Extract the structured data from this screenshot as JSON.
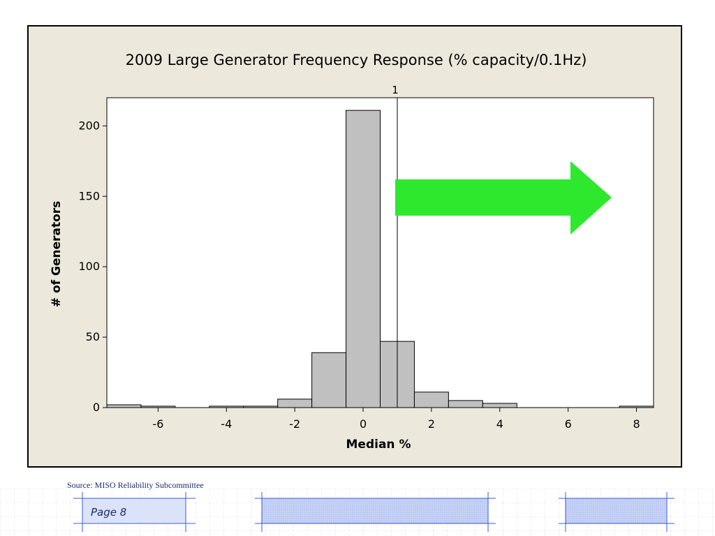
{
  "source_note": "Source: MISO Reliability Subcommittee",
  "page_label": "Page 8",
  "colors": {
    "frame_bg": "#ece9dc",
    "bar_fill": "#c0c0c0",
    "arrow": "#2ee82e",
    "footer_accent": "#3b5bdb"
  },
  "chart_data": {
    "type": "bar",
    "title": "2009 Large Generator Frequency Response  (% capacity/0.1Hz)",
    "xlabel": "Median %",
    "ylabel": "# of Generators",
    "xlim": [
      -7.5,
      8.5
    ],
    "ylim": [
      0,
      220
    ],
    "bin_width": 1,
    "bins": [
      {
        "x": -7,
        "count": 2
      },
      {
        "x": -6,
        "count": 1
      },
      {
        "x": -4,
        "count": 1
      },
      {
        "x": -3,
        "count": 1
      },
      {
        "x": -2,
        "count": 6
      },
      {
        "x": -1,
        "count": 39
      },
      {
        "x": 0,
        "count": 211
      },
      {
        "x": 1,
        "count": 47
      },
      {
        "x": 2,
        "count": 11
      },
      {
        "x": 3,
        "count": 5
      },
      {
        "x": 4,
        "count": 3
      },
      {
        "x": 8,
        "count": 1
      }
    ],
    "xticks": [
      -6,
      -4,
      -2,
      0,
      2,
      4,
      6,
      8
    ],
    "yticks": [
      0,
      50,
      100,
      150,
      200
    ],
    "reference_line": {
      "x": 1,
      "label": "1"
    },
    "annotation": {
      "type": "arrow",
      "direction": "right",
      "color": "#2ee82e"
    }
  }
}
